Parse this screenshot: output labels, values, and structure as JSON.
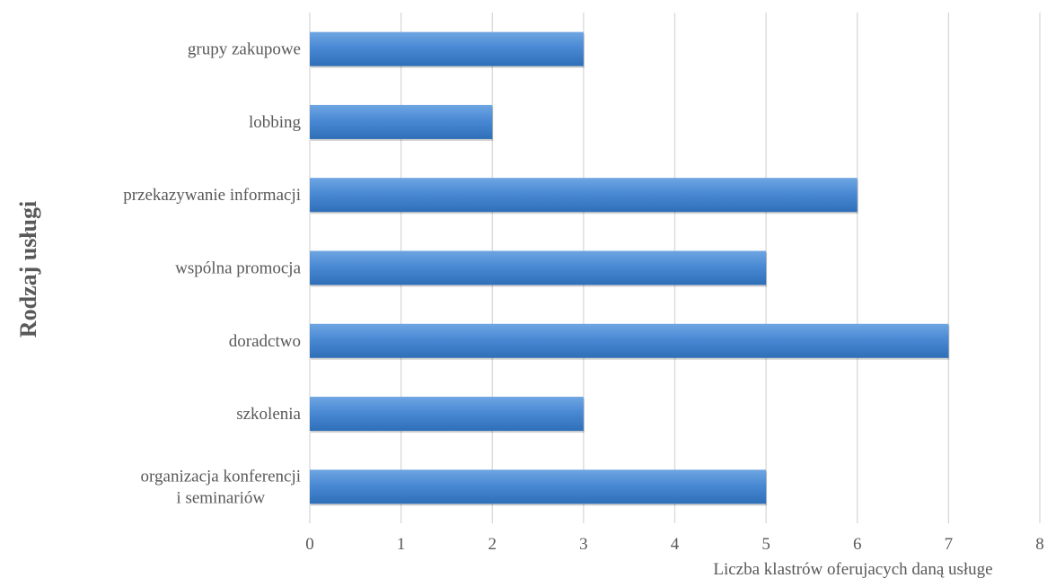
{
  "chart_data": {
    "type": "bar",
    "orientation": "horizontal",
    "categories": [
      "grupy zakupowe",
      "lobbing",
      "przekazywanie informacji",
      "wspólna promocja",
      "doradctwo",
      "szkolenia",
      "organizacja konferencji i seminariów"
    ],
    "category_lines": [
      [
        "grupy zakupowe"
      ],
      [
        "lobbing"
      ],
      [
        "przekazywanie informacji"
      ],
      [
        "wspólna promocja"
      ],
      [
        "doradctwo"
      ],
      [
        "szkolenia"
      ],
      [
        "organizacja konferencji",
        "i seminariów"
      ]
    ],
    "values": [
      3,
      2,
      6,
      5,
      7,
      3,
      5
    ],
    "xlim": [
      0,
      8
    ],
    "xticks": [
      "0",
      "1",
      "2",
      "3",
      "4",
      "5",
      "6",
      "7",
      "8"
    ],
    "xlabel": "Liczba klastrów oferujacych daną usługe",
    "ylabel": "Rodzaj usługi",
    "title": "",
    "grid": "vertical",
    "legend": "none",
    "colors": {
      "bar_top": "#6ea6e2",
      "bar_mid": "#4a89d4",
      "bar_bottom": "#2f6fb8",
      "grid": "#d9d9d9",
      "text": "#595959"
    }
  }
}
